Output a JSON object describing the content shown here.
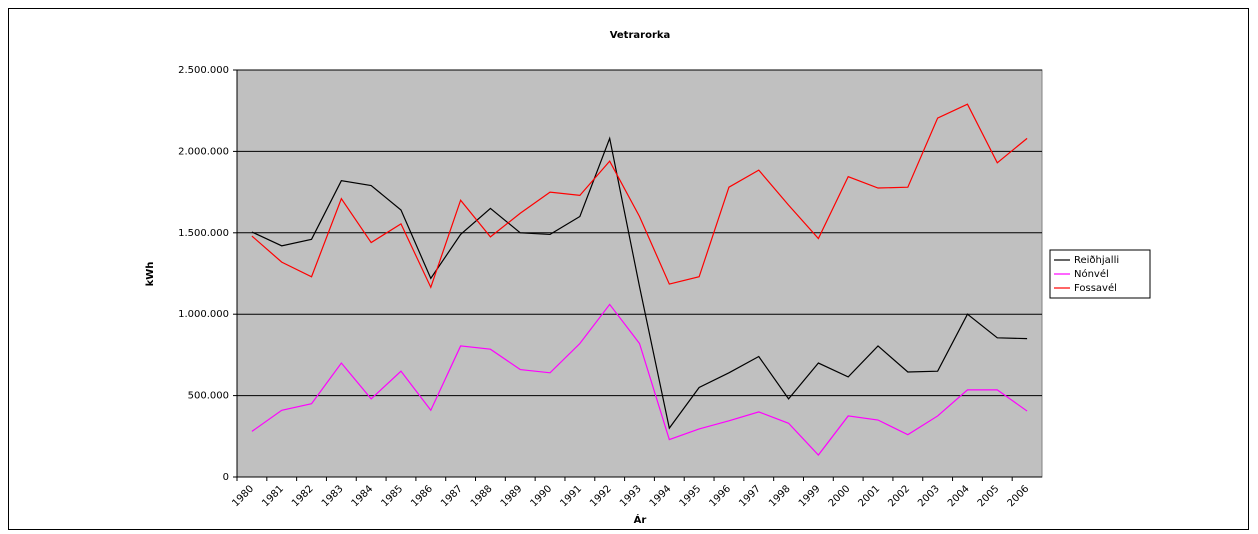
{
  "chart_data": {
    "type": "line",
    "title": "Vetrarorka",
    "x_label": "Ár",
    "y_label": "kWh",
    "categories": [
      "1980",
      "1981",
      "1982",
      "1983",
      "1984",
      "1985",
      "1986",
      "1987",
      "1988",
      "1989",
      "1990",
      "1991",
      "1992",
      "1993",
      "1994",
      "1995",
      "1996",
      "1997",
      "1998",
      "1999",
      "2000",
      "2001",
      "2002",
      "2003",
      "2004",
      "2005",
      "2006"
    ],
    "series": [
      {
        "name": "Reiðhjalli",
        "color": "#000000",
        "values": [
          1505000,
          1420000,
          1460000,
          1820000,
          1790000,
          1640000,
          1220000,
          1490000,
          1650000,
          1500000,
          1490000,
          1600000,
          2080000,
          1170000,
          300000,
          550000,
          640000,
          740000,
          480000,
          700000,
          615000,
          805000,
          645000,
          650000,
          1000000,
          855000,
          850000
        ]
      },
      {
        "name": "Nónvél",
        "color": "#ff00ff",
        "values": [
          280000,
          410000,
          450000,
          700000,
          480000,
          650000,
          410000,
          805000,
          785000,
          660000,
          640000,
          820000,
          1060000,
          820000,
          230000,
          295000,
          345000,
          400000,
          330000,
          135000,
          375000,
          350000,
          260000,
          375000,
          535000,
          535000,
          405000
        ]
      },
      {
        "name": "Fossavél",
        "color": "#ff0000",
        "values": [
          1480000,
          1320000,
          1230000,
          1710000,
          1440000,
          1555000,
          1165000,
          1700000,
          1475000,
          1620000,
          1750000,
          1730000,
          1940000,
          1600000,
          1185000,
          1230000,
          1780000,
          1885000,
          1670000,
          1465000,
          1845000,
          1775000,
          1780000,
          2205000,
          2290000,
          1930000,
          2080000
        ]
      }
    ],
    "ylim": [
      0,
      2500000
    ],
    "yticks": [
      0,
      {
        "value": 500000,
        "label": "500.000"
      },
      {
        "value": 1000000,
        "label": "1.000.000"
      },
      {
        "value": 1500000,
        "label": "1.500.000"
      },
      {
        "value": 2000000,
        "label": "2.000.000"
      },
      {
        "value": 2500000,
        "label": "2.500.000"
      }
    ],
    "grid": true,
    "legend": "right"
  }
}
